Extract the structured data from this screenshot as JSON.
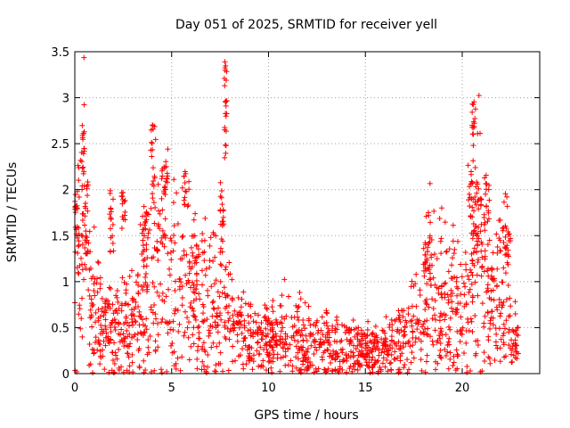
{
  "chart_data": {
    "type": "scatter",
    "title": "Day 051 of 2025, SRMTID for receiver yell",
    "xlabel": "GPS time / hours",
    "ylabel": "SRMTID / TECUs",
    "xlim": [
      0,
      24
    ],
    "ylim": [
      0,
      3.5
    ],
    "xticks": [
      0,
      5,
      10,
      15,
      20
    ],
    "xtick_labels": [
      "0",
      "5",
      "10",
      "15",
      "20"
    ],
    "yticks": [
      0,
      0.5,
      1,
      1.5,
      2,
      2.5,
      3,
      3.5
    ],
    "ytick_labels": [
      "0",
      "0.5",
      "1",
      "1.5",
      "2",
      "2.5",
      "3",
      "3.5"
    ],
    "grid": true,
    "marker": "+",
    "color": "#ff0000",
    "series": [
      {
        "name": "SRMTID",
        "profile": [
          [
            0.0,
            0.75
          ],
          [
            0.3,
            1.3
          ],
          [
            0.5,
            1.55
          ],
          [
            0.8,
            0.9
          ],
          [
            1.2,
            0.55
          ],
          [
            1.6,
            0.5
          ],
          [
            2.0,
            0.45
          ],
          [
            2.5,
            0.55
          ],
          [
            3.0,
            0.55
          ],
          [
            3.5,
            0.8
          ],
          [
            4.0,
            1.05
          ],
          [
            4.5,
            1.2
          ],
          [
            5.0,
            0.95
          ],
          [
            5.5,
            0.95
          ],
          [
            6.0,
            0.75
          ],
          [
            6.5,
            0.75
          ],
          [
            7.0,
            0.85
          ],
          [
            7.5,
            0.8
          ],
          [
            8.0,
            0.6
          ],
          [
            8.5,
            0.45
          ],
          [
            9.0,
            0.4
          ],
          [
            9.5,
            0.35
          ],
          [
            10.0,
            0.35
          ],
          [
            10.5,
            0.4
          ],
          [
            11.0,
            0.45
          ],
          [
            11.5,
            0.4
          ],
          [
            12.0,
            0.3
          ],
          [
            12.5,
            0.3
          ],
          [
            13.0,
            0.3
          ],
          [
            13.5,
            0.3
          ],
          [
            14.0,
            0.25
          ],
          [
            14.5,
            0.25
          ],
          [
            15.0,
            0.25
          ],
          [
            15.5,
            0.25
          ],
          [
            16.0,
            0.25
          ],
          [
            16.5,
            0.3
          ],
          [
            17.0,
            0.4
          ],
          [
            17.5,
            0.5
          ],
          [
            18.0,
            0.75
          ],
          [
            18.3,
            1.05
          ],
          [
            18.6,
            0.9
          ],
          [
            19.0,
            0.75
          ],
          [
            19.5,
            0.85
          ],
          [
            20.0,
            0.6
          ],
          [
            20.3,
            0.7
          ],
          [
            20.6,
            1.2
          ],
          [
            21.0,
            1.3
          ],
          [
            21.5,
            0.8
          ],
          [
            22.0,
            0.8
          ],
          [
            22.3,
            1.0
          ],
          [
            22.5,
            0.45
          ],
          [
            22.9,
            0.35
          ]
        ],
        "noise_fraction": 0.55,
        "sample_count": 1700,
        "bursts": [
          {
            "x": [
              0.0,
              0.15
            ],
            "y": [
              1.5,
              2.0
            ]
          },
          {
            "x": [
              0.35,
              0.5
            ],
            "y": [
              1.9,
              2.75
            ]
          },
          {
            "x": [
              0.5,
              0.7
            ],
            "y": [
              1.3,
              2.1
            ]
          },
          {
            "x": [
              1.8,
              2.0
            ],
            "y": [
              1.3,
              2.0
            ]
          },
          {
            "x": [
              2.4,
              2.6
            ],
            "y": [
              1.5,
              2.0
            ]
          },
          {
            "x": [
              3.5,
              3.8
            ],
            "y": [
              1.2,
              1.75
            ]
          },
          {
            "x": [
              3.9,
              4.2
            ],
            "y": [
              1.8,
              2.72
            ]
          },
          {
            "x": [
              4.2,
              4.7
            ],
            "y": [
              1.3,
              1.7
            ]
          },
          {
            "x": [
              4.5,
              4.8
            ],
            "y": [
              2.0,
              2.45
            ]
          },
          {
            "x": [
              5.6,
              5.9
            ],
            "y": [
              1.8,
              2.3
            ]
          },
          {
            "x": [
              6.0,
              6.4
            ],
            "y": [
              1.2,
              1.5
            ]
          },
          {
            "x": [
              7.5,
              7.7
            ],
            "y": [
              1.6,
              2.1
            ]
          },
          {
            "x": [
              7.7,
              7.85
            ],
            "y": [
              2.3,
              3.4
            ]
          },
          {
            "x": [
              20.3,
              20.6
            ],
            "y": [
              1.7,
              2.35
            ]
          },
          {
            "x": [
              20.5,
              20.7
            ],
            "y": [
              2.6,
              3.0
            ]
          },
          {
            "x": [
              20.6,
              21.0
            ],
            "y": [
              1.3,
              1.95
            ]
          },
          {
            "x": [
              21.1,
              21.4
            ],
            "y": [
              1.6,
              2.1
            ]
          },
          {
            "x": [
              22.2,
              22.5
            ],
            "y": [
              1.2,
              1.55
            ]
          },
          {
            "x": [
              18.0,
              18.5
            ],
            "y": [
              1.1,
              1.45
            ]
          }
        ]
      }
    ]
  }
}
